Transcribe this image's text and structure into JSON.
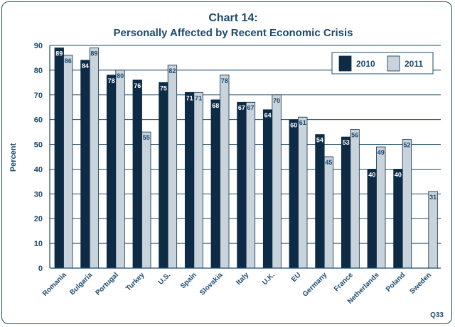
{
  "chart_data": {
    "type": "bar",
    "title": "Chart 14:",
    "subtitle": "Personally Affected by Recent Economic Crisis",
    "ylabel": "Percent",
    "xlabel": "",
    "ylim": [
      0,
      90
    ],
    "yticks": [
      0,
      10,
      20,
      30,
      40,
      50,
      60,
      70,
      80,
      90
    ],
    "grid": true,
    "legend_position": "top-right",
    "footnote": "Q33",
    "categories": [
      "Romania",
      "Bulgaria",
      "Portugal",
      "Turkey",
      "U.S.",
      "Spain",
      "Slovakia",
      "Italy",
      "U.K.",
      "EU",
      "Germany",
      "France",
      "Netherlands",
      "Poland",
      "Sweden"
    ],
    "series": [
      {
        "name": "2010",
        "color": "#0d2b45",
        "values": [
          89,
          84,
          78,
          76,
          75,
          71,
          68,
          67,
          64,
          60,
          54,
          53,
          40,
          40,
          null
        ]
      },
      {
        "name": "2011",
        "color": "#c8d3dc",
        "values": [
          86,
          89,
          80,
          55,
          82,
          71,
          78,
          67,
          70,
          61,
          45,
          56,
          49,
          52,
          31
        ]
      }
    ]
  },
  "colors": {
    "frame": "#1a4a6e",
    "title": "#1a4a6e",
    "grid": "#1a4a6e",
    "bar_stroke": "#0d2b45"
  }
}
